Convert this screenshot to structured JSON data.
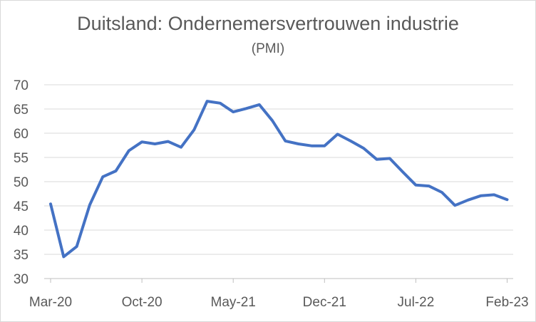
{
  "chart_data": {
    "type": "line",
    "title": "Duitsland: Ondernemersvertrouwen industrie",
    "subtitle": "(PMI)",
    "xlabel": "",
    "ylabel": "",
    "ylim": [
      30,
      70
    ],
    "yticks": [
      30,
      35,
      40,
      45,
      50,
      55,
      60,
      65,
      70
    ],
    "x_tick_labels": [
      "Mar-20",
      "Oct-20",
      "May-21",
      "Dec-21",
      "Jul-22",
      "Feb-23"
    ],
    "grid": true,
    "legend": "none",
    "colors": {
      "line": "#4472c4",
      "grid": "#d9d9d9",
      "text": "#595959"
    },
    "x": [
      "2020-03",
      "2020-04",
      "2020-05",
      "2020-06",
      "2020-07",
      "2020-08",
      "2020-09",
      "2020-10",
      "2020-11",
      "2020-12",
      "2021-01",
      "2021-02",
      "2021-03",
      "2021-04",
      "2021-05",
      "2021-06",
      "2021-07",
      "2021-08",
      "2021-09",
      "2021-10",
      "2021-11",
      "2021-12",
      "2022-01",
      "2022-02",
      "2022-03",
      "2022-04",
      "2022-05",
      "2022-06",
      "2022-07",
      "2022-08",
      "2022-09",
      "2022-10",
      "2022-11",
      "2022-12",
      "2023-01",
      "2023-02"
    ],
    "series": [
      {
        "values": [
          45.4,
          34.5,
          36.6,
          45.2,
          51.0,
          52.2,
          56.4,
          58.2,
          57.8,
          58.3,
          57.1,
          60.7,
          66.6,
          66.2,
          64.4,
          65.1,
          65.9,
          62.6,
          58.4,
          57.8,
          57.4,
          57.4,
          59.8,
          58.4,
          56.9,
          54.6,
          54.8,
          52.0,
          49.3,
          49.1,
          47.8,
          45.1,
          46.2,
          47.1,
          47.3,
          46.3
        ]
      }
    ]
  }
}
